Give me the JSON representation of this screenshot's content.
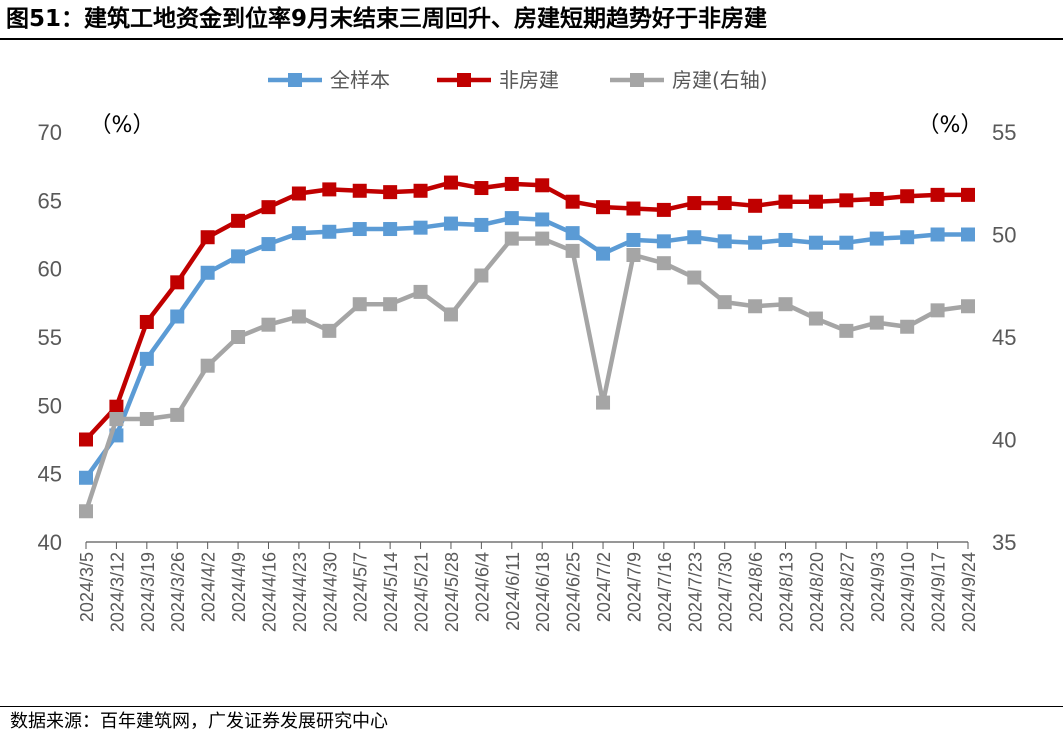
{
  "title": "图51：建筑工地资金到位率9月末结束三周回升、房建短期趋势好于非房建",
  "source": "数据来源：百年建筑网，广发证券发展研究中心",
  "chart_data": {
    "type": "line",
    "x": [
      "2024/3/5",
      "2024/3/12",
      "2024/3/19",
      "2024/3/26",
      "2024/4/2",
      "2024/4/9",
      "2024/4/16",
      "2024/4/23",
      "2024/4/30",
      "2024/5/7",
      "2024/5/14",
      "2024/5/21",
      "2024/5/28",
      "2024/6/4",
      "2024/6/11",
      "2024/6/18",
      "2024/6/25",
      "2024/7/2",
      "2024/7/9",
      "2024/7/16",
      "2024/7/23",
      "2024/7/30",
      "2024/8/6",
      "2024/8/13",
      "2024/8/20",
      "2024/8/27",
      "2024/9/3",
      "2024/9/10",
      "2024/9/17",
      "2024/9/24"
    ],
    "y_left": {
      "unit": "（%）",
      "ylim": [
        40,
        70
      ],
      "ticks": [
        "40",
        "45",
        "50",
        "55",
        "60",
        "65",
        "70"
      ]
    },
    "y_right": {
      "unit": "（%）",
      "ylim": [
        35,
        55
      ],
      "ticks": [
        "35",
        "40",
        "45",
        "50",
        "55"
      ]
    },
    "legend_position": "top-center",
    "series": [
      {
        "name": "全样本",
        "color": "#5B9BD5",
        "axis": "left",
        "values": [
          44.7,
          47.8,
          53.4,
          56.5,
          59.7,
          60.9,
          61.8,
          62.6,
          62.7,
          62.9,
          62.9,
          63.0,
          63.3,
          63.2,
          63.7,
          63.6,
          62.6,
          61.1,
          62.1,
          62.0,
          62.3,
          62.0,
          61.9,
          62.1,
          61.9,
          61.9,
          62.2,
          62.3,
          62.5,
          62.5
        ]
      },
      {
        "name": "非房建",
        "color": "#C00000",
        "axis": "left",
        "values": [
          47.5,
          49.9,
          56.1,
          59.0,
          62.3,
          63.5,
          64.5,
          65.5,
          65.8,
          65.7,
          65.6,
          65.7,
          66.3,
          65.9,
          66.2,
          66.1,
          64.9,
          64.5,
          64.4,
          64.3,
          64.8,
          64.8,
          64.6,
          64.9,
          64.9,
          65.0,
          65.1,
          65.3,
          65.4,
          65.4
        ]
      },
      {
        "name": "房建(右轴)",
        "color": "#A5A5A5",
        "axis": "right",
        "values": [
          36.5,
          41.0,
          41.0,
          41.2,
          43.6,
          45.0,
          45.6,
          46.0,
          45.3,
          46.6,
          46.6,
          47.2,
          46.1,
          48.0,
          49.8,
          49.8,
          49.2,
          41.8,
          49.0,
          48.6,
          47.9,
          46.7,
          46.5,
          46.6,
          45.9,
          45.3,
          45.7,
          45.5,
          46.3,
          46.5
        ]
      }
    ]
  }
}
